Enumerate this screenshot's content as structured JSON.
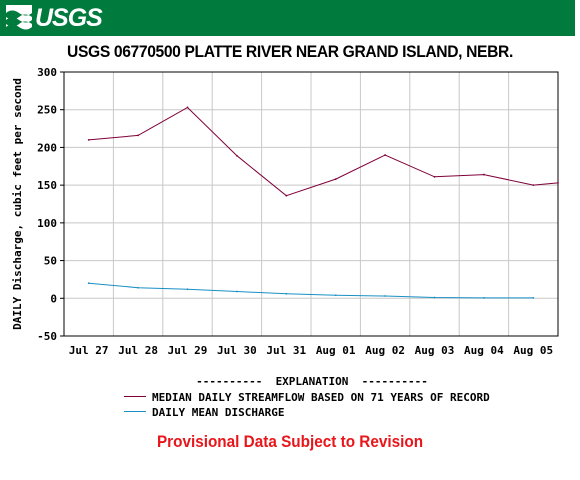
{
  "header": {
    "logo_text": "USGS",
    "bar_color": "#007a3d"
  },
  "chart_data": {
    "type": "line",
    "title": "USGS 06770500 PLATTE RIVER NEAR GRAND ISLAND, NEBR.",
    "ylabel": "DAILY Discharge, cubic feet per second",
    "xlabel": "",
    "ylim": [
      -50,
      300
    ],
    "yticks": [
      -50,
      0,
      50,
      100,
      150,
      200,
      250,
      300
    ],
    "xlim": [
      0,
      10
    ],
    "categories": [
      "Jul 27",
      "Jul 28",
      "Jul 29",
      "Jul 30",
      "Jul 31",
      "Aug 01",
      "Aug 02",
      "Aug 03",
      "Aug 04",
      "Aug 05"
    ],
    "grid": true,
    "series": [
      {
        "name": "MEDIAN DAILY STREAMFLOW BASED ON 71 YEARS OF RECORD",
        "color": "#7f0038",
        "x": [
          0.5,
          1.5,
          2.5,
          3.5,
          4.5,
          5.5,
          6.5,
          7.5,
          8.5,
          9.5,
          10
        ],
        "values": [
          210,
          216,
          253,
          189,
          136,
          158,
          190,
          161,
          164,
          150,
          153
        ]
      },
      {
        "name": "DAILY MEAN DISCHARGE",
        "color": "#1a8fc4",
        "x": [
          0.5,
          1.5,
          2.5,
          3.5,
          4.5,
          5.5,
          6.5,
          7.5,
          8.5,
          9.5
        ],
        "values": [
          20,
          14,
          12,
          9,
          6,
          4,
          3,
          1,
          0.5,
          0.5
        ]
      }
    ]
  },
  "legend": {
    "heading": "----------  EXPLANATION  ----------"
  },
  "footer": {
    "provisional_text": "Provisional Data Subject to Revision"
  }
}
